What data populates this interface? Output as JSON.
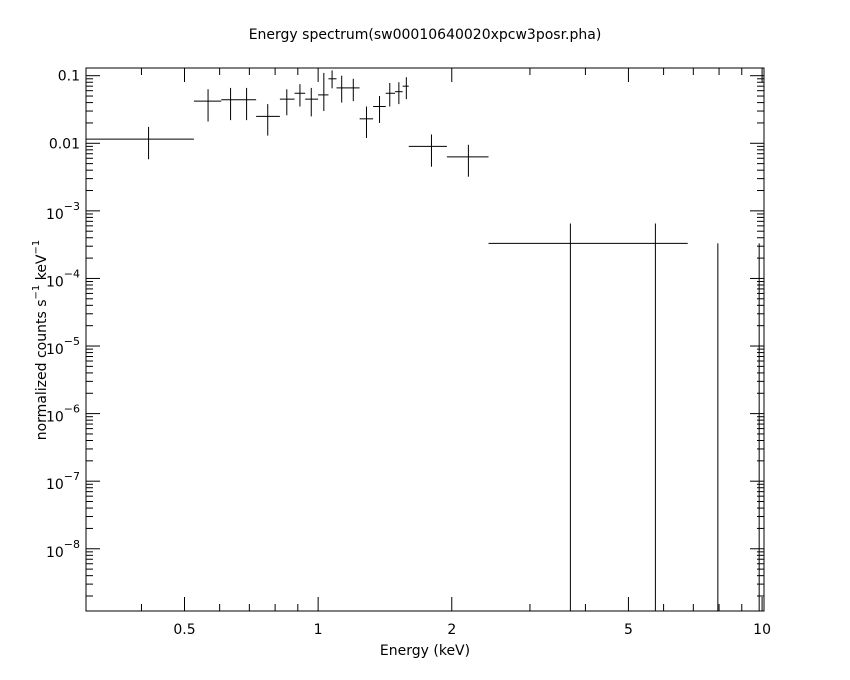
{
  "chart_data": {
    "type": "scatter",
    "title": "Energy spectrum(sw00010640020xpcw3posr.pha)",
    "xlabel": "Energy (keV)",
    "ylabel": {
      "text1": "normalized counts s",
      "sup1": "−1",
      "text2": " keV",
      "sup2": "−1"
    },
    "x_scale": "log",
    "y_scale": "log",
    "xlim": [
      0.3,
      10.1
    ],
    "ylim": [
      1.2e-09,
      0.13
    ],
    "grid": false,
    "x_ticks": [
      {
        "value": 0.5,
        "label": "0.5"
      },
      {
        "value": 1,
        "label": "1"
      },
      {
        "value": 2,
        "label": "2"
      },
      {
        "value": 5,
        "label": "5"
      },
      {
        "value": 10,
        "label": "10"
      }
    ],
    "y_ticks": [
      {
        "value": 0.1,
        "label": "0.1"
      },
      {
        "value": 0.01,
        "label": "0.01"
      },
      {
        "value": 0.001,
        "base": "10",
        "exp": "−3"
      },
      {
        "value": 0.0001,
        "base": "10",
        "exp": "−4"
      },
      {
        "value": 1e-05,
        "base": "10",
        "exp": "−5"
      },
      {
        "value": 1e-06,
        "base": "10",
        "exp": "−6"
      },
      {
        "value": 1e-07,
        "base": "10",
        "exp": "−7"
      },
      {
        "value": 1e-08,
        "base": "10",
        "exp": "−8"
      }
    ],
    "points": [
      {
        "x": 0.415,
        "xlo": 0.3,
        "xhi": 0.525,
        "y": 0.0115,
        "ylo": 0.0058,
        "yhi": 0.0175
      },
      {
        "x": 0.565,
        "xlo": 0.525,
        "xhi": 0.605,
        "y": 0.042,
        "ylo": 0.021,
        "yhi": 0.063
      },
      {
        "x": 0.635,
        "xlo": 0.605,
        "xhi": 0.665,
        "y": 0.044,
        "ylo": 0.022,
        "yhi": 0.066
      },
      {
        "x": 0.69,
        "xlo": 0.665,
        "xhi": 0.725,
        "y": 0.044,
        "ylo": 0.022,
        "yhi": 0.066
      },
      {
        "x": 0.77,
        "xlo": 0.725,
        "xhi": 0.82,
        "y": 0.025,
        "ylo": 0.013,
        "yhi": 0.038
      },
      {
        "x": 0.85,
        "xlo": 0.82,
        "xhi": 0.885,
        "y": 0.045,
        "ylo": 0.026,
        "yhi": 0.063
      },
      {
        "x": 0.91,
        "xlo": 0.885,
        "xhi": 0.935,
        "y": 0.055,
        "ylo": 0.035,
        "yhi": 0.075
      },
      {
        "x": 0.965,
        "xlo": 0.935,
        "xhi": 1.0,
        "y": 0.045,
        "ylo": 0.025,
        "yhi": 0.066
      },
      {
        "x": 1.03,
        "xlo": 1.0,
        "xhi": 1.055,
        "y": 0.052,
        "ylo": 0.03,
        "yhi": 0.11
      },
      {
        "x": 1.075,
        "xlo": 1.055,
        "xhi": 1.1,
        "y": 0.09,
        "ylo": 0.065,
        "yhi": 0.12
      },
      {
        "x": 1.13,
        "xlo": 1.1,
        "xhi": 1.17,
        "y": 0.066,
        "ylo": 0.04,
        "yhi": 0.1
      },
      {
        "x": 1.2,
        "xlo": 1.17,
        "xhi": 1.24,
        "y": 0.066,
        "ylo": 0.042,
        "yhi": 0.09
      },
      {
        "x": 1.285,
        "xlo": 1.24,
        "xhi": 1.33,
        "y": 0.023,
        "ylo": 0.012,
        "yhi": 0.035
      },
      {
        "x": 1.375,
        "xlo": 1.33,
        "xhi": 1.42,
        "y": 0.035,
        "ylo": 0.02,
        "yhi": 0.05
      },
      {
        "x": 1.45,
        "xlo": 1.42,
        "xhi": 1.49,
        "y": 0.055,
        "ylo": 0.035,
        "yhi": 0.078
      },
      {
        "x": 1.52,
        "xlo": 1.49,
        "xhi": 1.55,
        "y": 0.058,
        "ylo": 0.038,
        "yhi": 0.08
      },
      {
        "x": 1.58,
        "xlo": 1.55,
        "xhi": 1.6,
        "y": 0.07,
        "ylo": 0.045,
        "yhi": 0.095
      },
      {
        "x": 1.8,
        "xlo": 1.6,
        "xhi": 1.95,
        "y": 0.009,
        "ylo": 0.0045,
        "yhi": 0.0135
      },
      {
        "x": 2.18,
        "xlo": 1.95,
        "xhi": 2.42,
        "y": 0.0063,
        "ylo": 0.0032,
        "yhi": 0.0095
      },
      {
        "x": 3.7,
        "xlo": 2.42,
        "xhi": 6.8,
        "y": 0.00033,
        "ylo": 1.2e-09,
        "yhi": 0.00065
      },
      {
        "x": 5.75,
        "xlo": 5.75,
        "xhi": 5.75,
        "y": 0.00033,
        "ylo": 1.2e-09,
        "yhi": 0.00065
      },
      {
        "x": 7.95,
        "xlo": 7.95,
        "xhi": 7.95,
        "y": 0.00033,
        "ylo": 1.2e-09,
        "yhi": 0.00033
      },
      {
        "x": 9.85,
        "xlo": 9.85,
        "xhi": 9.85,
        "y": 0.00033,
        "ylo": 1.2e-09,
        "yhi": 0.00033
      }
    ]
  }
}
